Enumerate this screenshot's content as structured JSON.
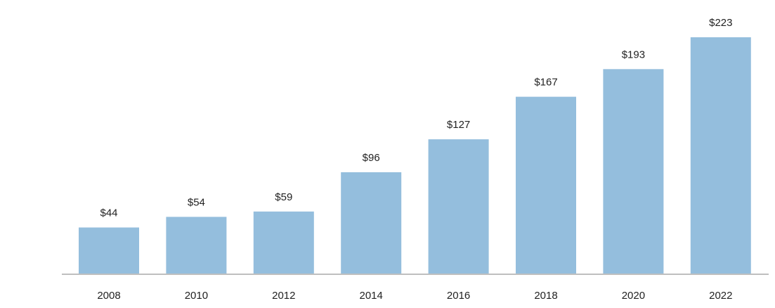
{
  "chart_data": {
    "type": "bar",
    "categories": [
      "2008",
      "2010",
      "2012",
      "2014",
      "2016",
      "2018",
      "2020",
      "2022"
    ],
    "values": [
      44,
      54,
      59,
      96,
      127,
      167,
      193,
      223
    ],
    "value_labels": [
      "$44",
      "$54",
      "$59",
      "$96",
      "$127",
      "$167",
      "$193",
      "$223"
    ],
    "title": "",
    "xlabel": "",
    "ylabel": "",
    "ylim": [
      0,
      223
    ],
    "grid": false,
    "legend": "none",
    "bar_color": "#94bedd",
    "baseline_color": "#bfbfbf"
  }
}
